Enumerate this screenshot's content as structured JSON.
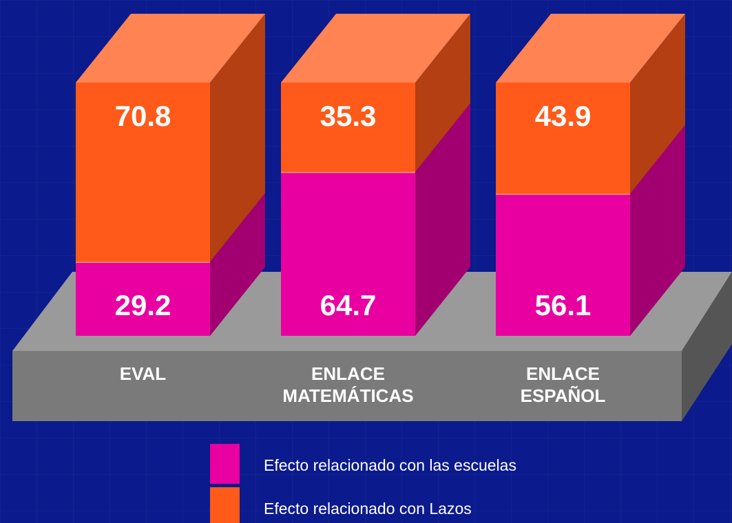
{
  "chart_data": {
    "type": "stacked_bar_3d",
    "categories": [
      "EVAL",
      "ENLACE MATEMÁTICAS",
      "ENLACE ESPAÑOL"
    ],
    "series": [
      {
        "name": "Efecto relacionado con las escuelas",
        "color": "#e800a0",
        "values": [
          29.2,
          64.7,
          56.1
        ]
      },
      {
        "name": "Efecto relacionado con Lazos",
        "color": "#ff5a1a",
        "values": [
          70.8,
          35.3,
          43.9
        ]
      }
    ]
  }
}
